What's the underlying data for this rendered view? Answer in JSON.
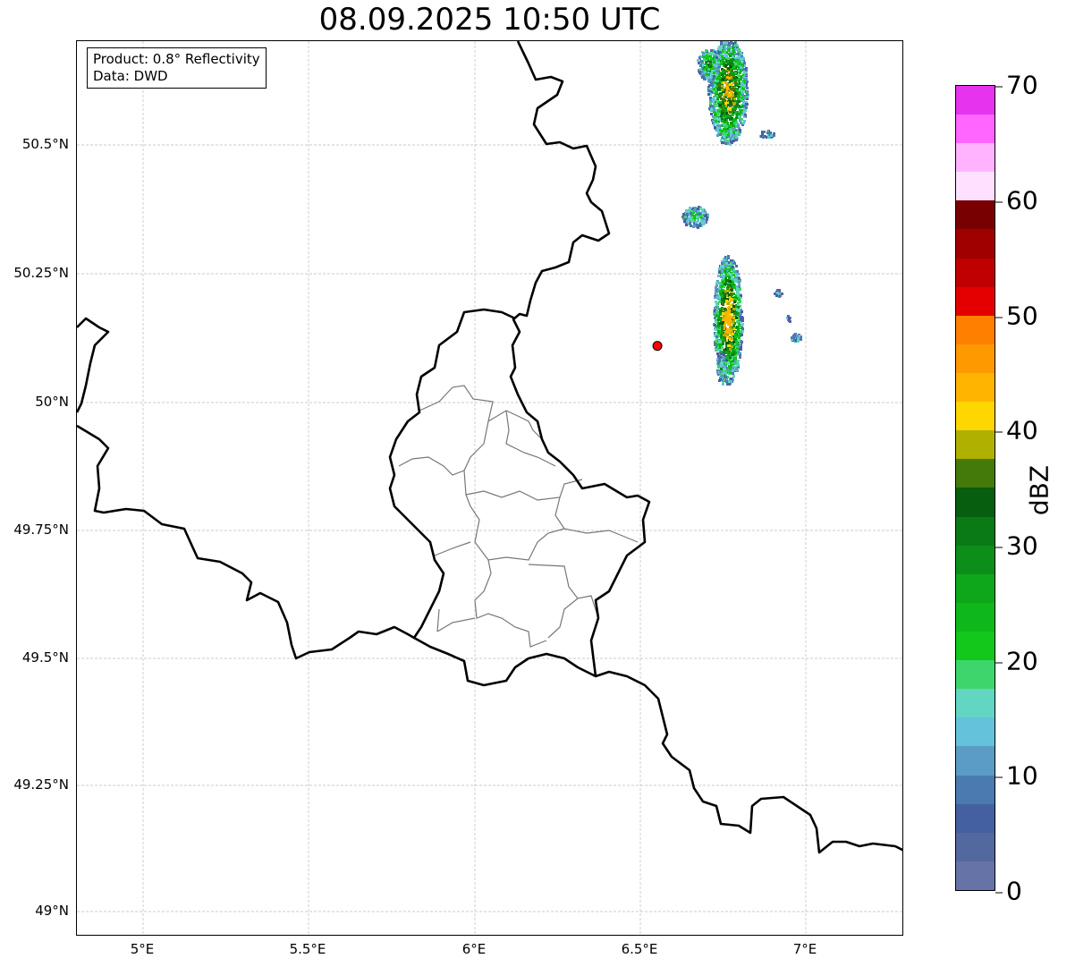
{
  "title": "08.09.2025 10:50 UTC",
  "info_box": {
    "line1": "Product: 0.8° Reflectivity",
    "line2": "Data: DWD"
  },
  "lat_ticks": [
    "50.5°N",
    "50.25°N",
    "50°N",
    "49.75°N",
    "49.5°N",
    "49.25°N",
    "49°N"
  ],
  "lon_ticks": [
    "5°E",
    "5.5°E",
    "6°E",
    "6.5°E",
    "7°E"
  ],
  "colorbar": {
    "label": "dBZ",
    "ticks": [
      "0",
      "10",
      "20",
      "30",
      "40",
      "50",
      "60",
      "70"
    ],
    "range": [
      0,
      70
    ],
    "step": 2.5,
    "colors": [
      "#6673a6",
      "#5468a0",
      "#4560a0",
      "#4a7ab0",
      "#5a9cc6",
      "#64c3da",
      "#62d6c2",
      "#3dd66c",
      "#12c81a",
      "#0fb81a",
      "#0ea61a",
      "#0c8e18",
      "#097a14",
      "#065e0e",
      "#447a0a",
      "#b0b000",
      "#ffd700",
      "#ffb400",
      "#ff9900",
      "#ff7f00",
      "#e40000",
      "#c00000",
      "#a00000",
      "#780000",
      "#ffe0ff",
      "#ffb3ff",
      "#ff66ff",
      "#e633ee"
    ]
  },
  "radar_site": {
    "lon": 6.55,
    "lat": 50.11,
    "color": "#ff0000"
  }
}
